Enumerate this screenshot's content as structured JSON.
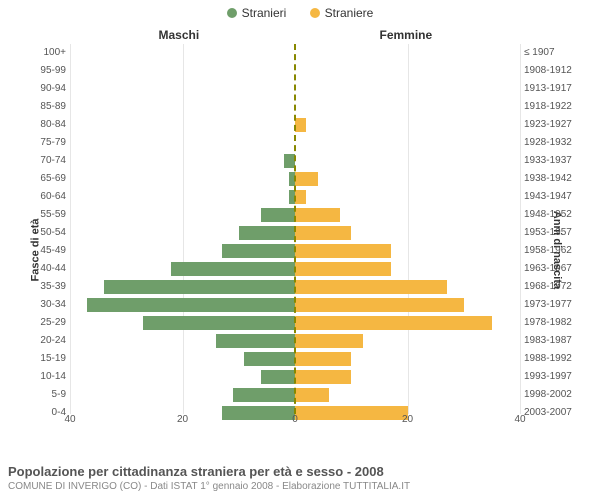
{
  "legend": {
    "male": {
      "label": "Stranieri",
      "color": "#6f9e6a"
    },
    "female": {
      "label": "Straniere",
      "color": "#f5b742"
    }
  },
  "column_titles": {
    "left": "Maschi",
    "right": "Femmine"
  },
  "y_axis_left_title": "Fasce di età",
  "y_axis_right_title": "Anni di nascita",
  "caption": {
    "title": "Popolazione per cittadinanza straniera per età e sesso - 2008",
    "sub": "COMUNE DI INVERIGO (CO) - Dati ISTAT 1° gennaio 2008 - Elaborazione TUTTITALIA.IT"
  },
  "chart": {
    "type": "population-pyramid",
    "x_max": 40,
    "x_tick_step": 20,
    "x_ticks": [
      40,
      20,
      0,
      20,
      40
    ],
    "bar_color_left": "#6f9e6a",
    "bar_color_right": "#f5b742",
    "grid_color": "#e6e6e6",
    "zero_line_color": "#888800",
    "background_color": "#ffffff",
    "age_label_fontsize": 10,
    "tick_fontsize": 10,
    "rows": [
      {
        "age": "100+",
        "birth": "≤ 1907",
        "m": 0,
        "f": 0
      },
      {
        "age": "95-99",
        "birth": "1908-1912",
        "m": 0,
        "f": 0
      },
      {
        "age": "90-94",
        "birth": "1913-1917",
        "m": 0,
        "f": 0
      },
      {
        "age": "85-89",
        "birth": "1918-1922",
        "m": 0,
        "f": 0
      },
      {
        "age": "80-84",
        "birth": "1923-1927",
        "m": 0,
        "f": 2
      },
      {
        "age": "75-79",
        "birth": "1928-1932",
        "m": 0,
        "f": 0
      },
      {
        "age": "70-74",
        "birth": "1933-1937",
        "m": 2,
        "f": 0
      },
      {
        "age": "65-69",
        "birth": "1938-1942",
        "m": 1,
        "f": 4
      },
      {
        "age": "60-64",
        "birth": "1943-1947",
        "m": 1,
        "f": 2
      },
      {
        "age": "55-59",
        "birth": "1948-1952",
        "m": 6,
        "f": 8
      },
      {
        "age": "50-54",
        "birth": "1953-1957",
        "m": 10,
        "f": 10
      },
      {
        "age": "45-49",
        "birth": "1958-1962",
        "m": 13,
        "f": 17
      },
      {
        "age": "40-44",
        "birth": "1963-1967",
        "m": 22,
        "f": 17
      },
      {
        "age": "35-39",
        "birth": "1968-1972",
        "m": 34,
        "f": 27
      },
      {
        "age": "30-34",
        "birth": "1973-1977",
        "m": 37,
        "f": 30
      },
      {
        "age": "25-29",
        "birth": "1978-1982",
        "m": 27,
        "f": 35
      },
      {
        "age": "20-24",
        "birth": "1983-1987",
        "m": 14,
        "f": 12
      },
      {
        "age": "15-19",
        "birth": "1988-1992",
        "m": 9,
        "f": 10
      },
      {
        "age": "10-14",
        "birth": "1993-1997",
        "m": 6,
        "f": 10
      },
      {
        "age": "5-9",
        "birth": "1998-2002",
        "m": 11,
        "f": 6
      },
      {
        "age": "0-4",
        "birth": "2003-2007",
        "m": 13,
        "f": 20
      }
    ]
  }
}
